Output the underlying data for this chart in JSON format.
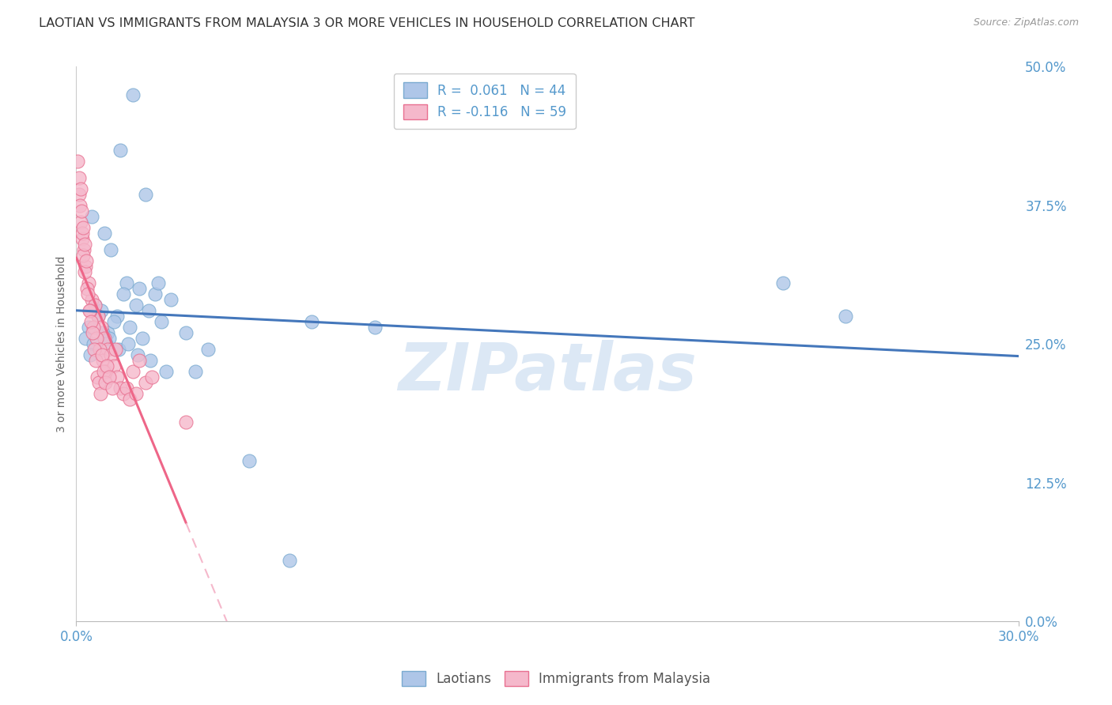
{
  "title": "LAOTIAN VS IMMIGRANTS FROM MALAYSIA 3 OR MORE VEHICLES IN HOUSEHOLD CORRELATION CHART",
  "source": "Source: ZipAtlas.com",
  "ylabel": "3 or more Vehicles in Household",
  "ytick_vals": [
    0.0,
    12.5,
    25.0,
    37.5,
    50.0
  ],
  "xlim": [
    0.0,
    30.0
  ],
  "ylim": [
    0.0,
    50.0
  ],
  "r_laotian": 0.061,
  "n_laotian": 44,
  "r_malaysia": -0.116,
  "n_malaysia": 59,
  "color_laotian": "#aec6e8",
  "color_malaysia": "#f5b8cb",
  "edge_laotian": "#7aaad0",
  "edge_malaysia": "#e87090",
  "trend_laotian_color": "#4477bb",
  "trend_malaysia_color": "#ee6688",
  "trend_malaysia_dash_color": "#f5b8cb",
  "background_color": "#ffffff",
  "grid_color": "#cccccc",
  "title_color": "#333333",
  "axis_label_color": "#5599cc",
  "watermark": "ZIPatlas",
  "watermark_color": "#dce8f5",
  "laotian_x": [
    1.8,
    1.4,
    2.2,
    0.5,
    0.9,
    1.1,
    1.6,
    2.0,
    2.5,
    3.0,
    0.6,
    0.8,
    1.3,
    1.5,
    1.9,
    2.3,
    2.7,
    0.4,
    0.7,
    1.0,
    1.2,
    1.7,
    2.1,
    2.6,
    3.5,
    0.3,
    0.55,
    0.85,
    1.05,
    1.35,
    1.65,
    1.95,
    2.35,
    2.85,
    7.5,
    9.5,
    22.5,
    24.5,
    5.5,
    3.8,
    4.2,
    0.45,
    0.95,
    6.8
  ],
  "laotian_y": [
    47.5,
    42.5,
    38.5,
    36.5,
    35.0,
    33.5,
    30.5,
    30.0,
    29.5,
    29.0,
    28.5,
    28.0,
    27.5,
    29.5,
    28.5,
    28.0,
    27.0,
    26.5,
    27.5,
    26.0,
    27.0,
    26.5,
    25.5,
    30.5,
    26.0,
    25.5,
    25.0,
    26.0,
    25.5,
    24.5,
    25.0,
    24.0,
    23.5,
    22.5,
    27.0,
    26.5,
    30.5,
    27.5,
    14.5,
    22.5,
    24.5,
    24.0,
    25.0,
    5.5
  ],
  "malaysia_x": [
    0.05,
    0.1,
    0.15,
    0.2,
    0.25,
    0.3,
    0.4,
    0.5,
    0.6,
    0.7,
    0.8,
    0.9,
    1.0,
    0.12,
    0.18,
    0.22,
    0.28,
    0.35,
    0.45,
    0.55,
    0.65,
    0.75,
    0.85,
    0.95,
    1.1,
    1.2,
    1.3,
    1.4,
    1.5,
    1.6,
    1.7,
    1.8,
    1.9,
    2.0,
    2.2,
    2.4,
    0.08,
    0.13,
    0.17,
    0.23,
    0.27,
    0.32,
    0.38,
    0.42,
    0.48,
    0.52,
    0.58,
    0.62,
    0.68,
    0.72,
    0.78,
    0.82,
    0.88,
    0.92,
    0.98,
    1.05,
    1.15,
    1.25,
    3.5
  ],
  "malaysia_y": [
    41.5,
    38.5,
    36.0,
    34.5,
    33.5,
    32.0,
    30.5,
    29.0,
    28.5,
    27.5,
    26.5,
    25.5,
    24.5,
    37.5,
    35.0,
    33.0,
    31.5,
    30.0,
    28.0,
    26.5,
    25.5,
    24.5,
    23.5,
    22.5,
    24.0,
    23.0,
    22.0,
    21.0,
    20.5,
    21.0,
    20.0,
    22.5,
    20.5,
    23.5,
    21.5,
    22.0,
    40.0,
    39.0,
    37.0,
    35.5,
    34.0,
    32.5,
    29.5,
    28.0,
    27.0,
    26.0,
    24.5,
    23.5,
    22.0,
    21.5,
    20.5,
    24.0,
    22.5,
    21.5,
    23.0,
    22.0,
    21.0,
    24.5,
    18.0
  ]
}
